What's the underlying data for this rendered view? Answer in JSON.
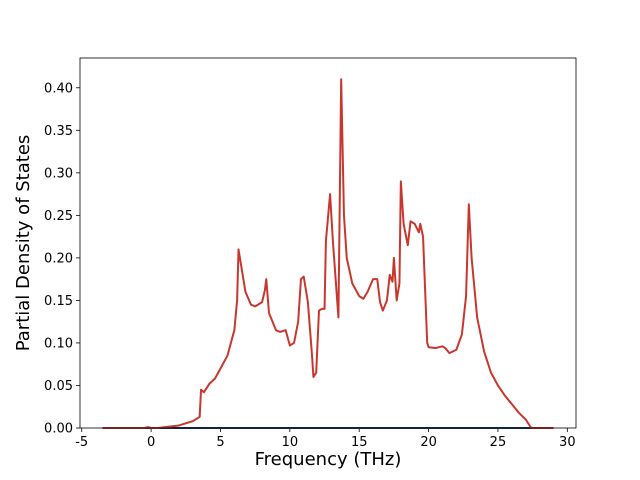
{
  "chart_data": {
    "type": "line",
    "xlabel": "Frequency (THz)",
    "ylabel": "Partial Density of States",
    "xlim": [
      -5.125,
      30.625
    ],
    "ylim": [
      0,
      0.435
    ],
    "xticks": [
      -5,
      0,
      5,
      10,
      15,
      20,
      25,
      30
    ],
    "yticks": [
      {
        "value": 0,
        "label": "0.00"
      },
      {
        "value": 0.05,
        "label": "0.05"
      },
      {
        "value": 0.1,
        "label": "0.10"
      },
      {
        "value": 0.15,
        "label": "0.15"
      },
      {
        "value": 0.2,
        "label": "0.20"
      },
      {
        "value": 0.25,
        "label": "0.25"
      },
      {
        "value": 0.3,
        "label": "0.30"
      },
      {
        "value": 0.35,
        "label": "0.35"
      },
      {
        "value": 0.4,
        "label": "0.40"
      }
    ],
    "series": [
      {
        "color": "#1a3d6d",
        "x": [
          -3.5,
          29
        ],
        "values": [
          0,
          0
        ]
      },
      {
        "color": "#c8372d",
        "x": [
          -3.5,
          -0.5,
          -0.2,
          0,
          0.5,
          1,
          2,
          3,
          3.5,
          3.6,
          3.8,
          4.2,
          4.6,
          5,
          5.5,
          6,
          6.2,
          6.3,
          6.5,
          6.8,
          7.2,
          7.5,
          8,
          8.2,
          8.3,
          8.5,
          9,
          9.3,
          9.7,
          10,
          10.3,
          10.6,
          10.8,
          11,
          11.3,
          11.6,
          11.7,
          11.9,
          12.1,
          12.3,
          12.5,
          12.6,
          12.9,
          13.1,
          13.5,
          13.7,
          13.9,
          14.1,
          14.5,
          15,
          15.3,
          15.6,
          16,
          16.3,
          16.5,
          16.7,
          17,
          17.2,
          17.4,
          17.5,
          17.7,
          17.9,
          18,
          18.2,
          18.5,
          18.7,
          19,
          19.3,
          19.4,
          19.6,
          19.9,
          20,
          20.5,
          21,
          21.2,
          21.5,
          22,
          22.4,
          22.7,
          22.9,
          23.1,
          23.5,
          24,
          24.5,
          25,
          25.5,
          26,
          26.5,
          27,
          27.4,
          28,
          29
        ],
        "values": [
          0,
          0,
          0.001,
          0,
          0,
          0.001,
          0.003,
          0.008,
          0.013,
          0.045,
          0.042,
          0.052,
          0.058,
          0.07,
          0.085,
          0.115,
          0.15,
          0.21,
          0.19,
          0.16,
          0.145,
          0.143,
          0.148,
          0.162,
          0.175,
          0.135,
          0.115,
          0.113,
          0.115,
          0.097,
          0.1,
          0.125,
          0.175,
          0.178,
          0.148,
          0.085,
          0.06,
          0.065,
          0.138,
          0.14,
          0.14,
          0.22,
          0.275,
          0.22,
          0.13,
          0.41,
          0.25,
          0.2,
          0.17,
          0.155,
          0.152,
          0.16,
          0.175,
          0.175,
          0.148,
          0.138,
          0.15,
          0.18,
          0.172,
          0.2,
          0.15,
          0.17,
          0.29,
          0.24,
          0.215,
          0.243,
          0.24,
          0.23,
          0.24,
          0.225,
          0.1,
          0.095,
          0.094,
          0.096,
          0.094,
          0.088,
          0.092,
          0.11,
          0.155,
          0.263,
          0.2,
          0.13,
          0.09,
          0.065,
          0.05,
          0.038,
          0.028,
          0.018,
          0.01,
          0,
          0,
          0
        ]
      }
    ]
  }
}
